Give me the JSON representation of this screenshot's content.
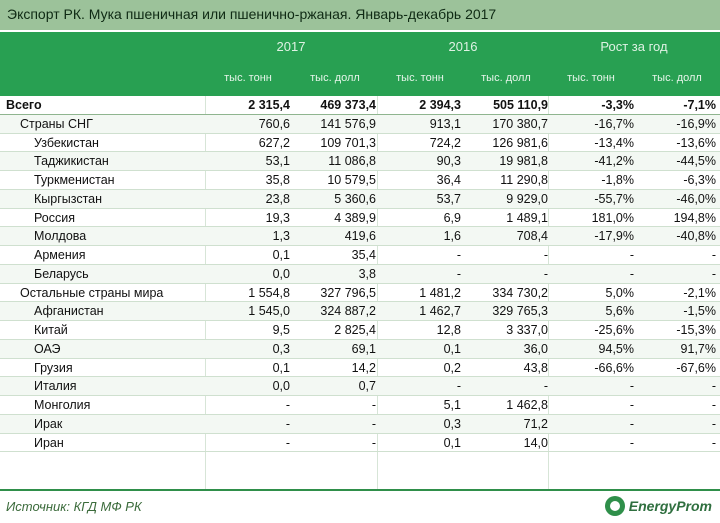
{
  "title": "Экспорт РК. Мука пшеничная или пшенично-ржаная. Январь-декабрь 2017",
  "header": {
    "year1": "2017",
    "year2": "2016",
    "growth": "Рост за год",
    "units": [
      "тыс. тонн",
      "тыс. долл",
      "тыс. тонн",
      "тыс. долл",
      "тыс. тонн",
      "тыс. долл"
    ]
  },
  "rows": [
    {
      "label": "Всего",
      "v": [
        "2 315,4",
        "469 373,4",
        "2 394,3",
        "505 110,9",
        "-3,3%",
        "-7,1%"
      ]
    },
    {
      "label": "Страны СНГ",
      "v": [
        "760,6",
        "141 576,9",
        "913,1",
        "170 380,7",
        "-16,7%",
        "-16,9%"
      ]
    },
    {
      "label": "Узбекистан",
      "v": [
        "627,2",
        "109 701,3",
        "724,2",
        "126 981,6",
        "-13,4%",
        "-13,6%"
      ]
    },
    {
      "label": "Таджикистан",
      "v": [
        "53,1",
        "11 086,8",
        "90,3",
        "19 981,8",
        "-41,2%",
        "-44,5%"
      ]
    },
    {
      "label": "Туркменистан",
      "v": [
        "35,8",
        "10 579,5",
        "36,4",
        "11 290,8",
        "-1,8%",
        "-6,3%"
      ]
    },
    {
      "label": "Кыргызстан",
      "v": [
        "23,8",
        "5 360,6",
        "53,7",
        "9 929,0",
        "-55,7%",
        "-46,0%"
      ]
    },
    {
      "label": "Россия",
      "v": [
        "19,3",
        "4 389,9",
        "6,9",
        "1 489,1",
        "181,0%",
        "194,8%"
      ]
    },
    {
      "label": "Молдова",
      "v": [
        "1,3",
        "419,6",
        "1,6",
        "708,4",
        "-17,9%",
        "-40,8%"
      ]
    },
    {
      "label": "Армения",
      "v": [
        "0,1",
        "35,4",
        "-",
        "-",
        "-",
        "-"
      ]
    },
    {
      "label": "Беларусь",
      "v": [
        "0,0",
        "3,8",
        "-",
        "-",
        "-",
        "-"
      ]
    },
    {
      "label": "Остальные страны мира",
      "v": [
        "1 554,8",
        "327 796,5",
        "1 481,2",
        "334 730,2",
        "5,0%",
        "-2,1%"
      ]
    },
    {
      "label": "Афганистан",
      "v": [
        "1 545,0",
        "324 887,2",
        "1 462,7",
        "329 765,3",
        "5,6%",
        "-1,5%"
      ]
    },
    {
      "label": "Китай",
      "v": [
        "9,5",
        "2 825,4",
        "12,8",
        "3 337,0",
        "-25,6%",
        "-15,3%"
      ]
    },
    {
      "label": "ОАЭ",
      "v": [
        "0,3",
        "69,1",
        "0,1",
        "36,0",
        "94,5%",
        "91,7%"
      ]
    },
    {
      "label": "Грузия",
      "v": [
        "0,1",
        "14,2",
        "0,2",
        "43,8",
        "-66,6%",
        "-67,6%"
      ]
    },
    {
      "label": "Италия",
      "v": [
        "0,0",
        "0,7",
        "-",
        "-",
        "-",
        "-"
      ]
    },
    {
      "label": "Монголия",
      "v": [
        "-",
        "-",
        "5,1",
        "1 462,8",
        "-",
        "-"
      ]
    },
    {
      "label": "Ирак",
      "v": [
        "-",
        "-",
        "0,3",
        "71,2",
        "-",
        "-"
      ]
    },
    {
      "label": "Иран",
      "v": [
        "-",
        "-",
        "0,1",
        "14,0",
        "-",
        "-"
      ]
    }
  ],
  "footer": {
    "source": "Источник: КГД МФ РК",
    "logo": "EnergyProm"
  }
}
